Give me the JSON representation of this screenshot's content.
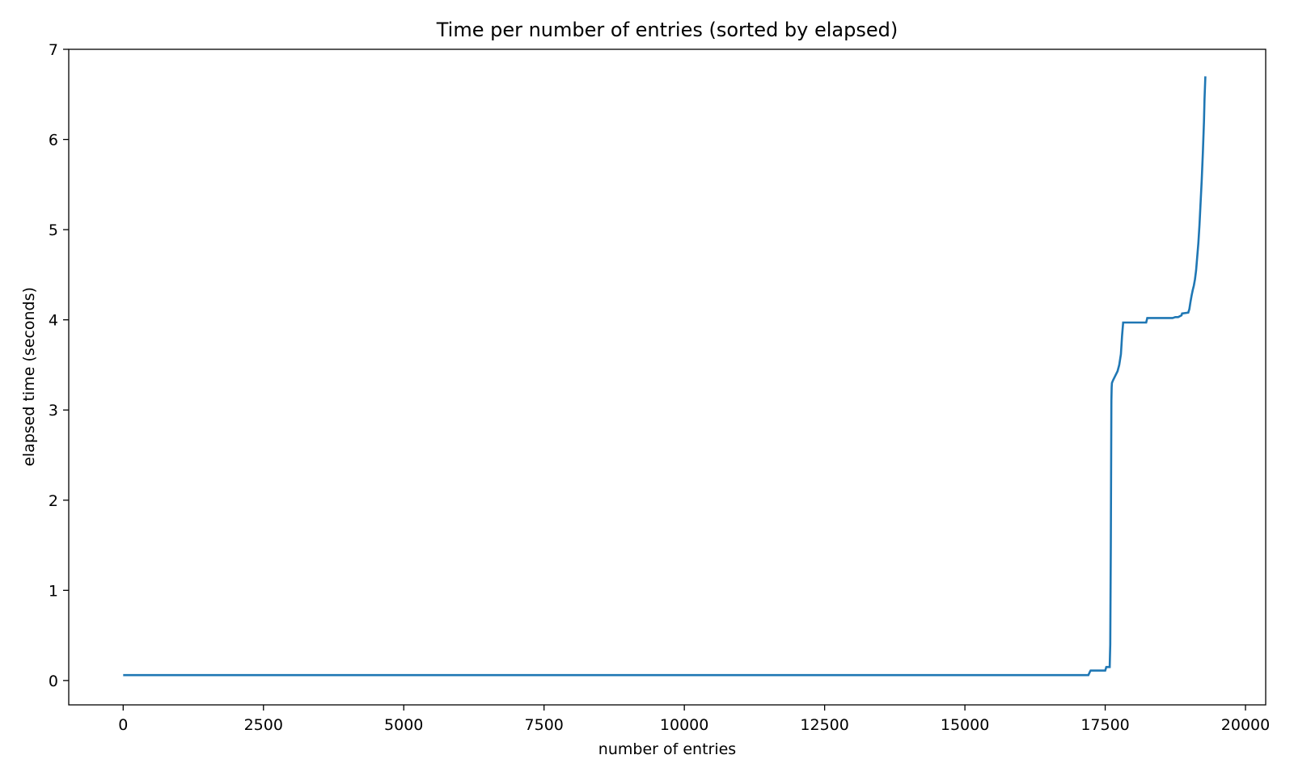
{
  "chart_data": {
    "type": "line",
    "title": "Time per number of entries (sorted by elapsed)",
    "xlabel": "number of entries",
    "ylabel": "elapsed time (seconds)",
    "xlim": [
      -970,
      20360
    ],
    "ylim": [
      -0.27,
      7.0
    ],
    "xticks": [
      0,
      2500,
      5000,
      7500,
      10000,
      12500,
      15000,
      17500,
      20000
    ],
    "yticks": [
      0,
      1,
      2,
      3,
      4,
      5,
      6,
      7
    ],
    "grid": false,
    "legend": "none",
    "series": [
      {
        "color": "#1f77b4",
        "x": [
          0,
          17200,
          17230,
          17240,
          17500,
          17520,
          17580,
          17590,
          17600,
          17610,
          17615,
          17620,
          17640,
          17680,
          17720,
          17750,
          17780,
          17800,
          17820,
          18230,
          18250,
          18700,
          18750,
          18800,
          18860,
          18870,
          18980,
          19000,
          19020,
          19040,
          19060,
          19080,
          19100,
          19120,
          19140,
          19160,
          19180,
          19200,
          19220,
          19240,
          19260,
          19270,
          19285
        ],
        "y": [
          0.06,
          0.06,
          0.1,
          0.11,
          0.11,
          0.15,
          0.15,
          0.4,
          1.5,
          3.1,
          3.25,
          3.3,
          3.33,
          3.38,
          3.43,
          3.5,
          3.62,
          3.82,
          3.97,
          3.97,
          4.02,
          4.02,
          4.03,
          4.03,
          4.05,
          4.07,
          4.08,
          4.12,
          4.2,
          4.27,
          4.33,
          4.38,
          4.45,
          4.55,
          4.7,
          4.85,
          5.05,
          5.3,
          5.55,
          5.85,
          6.2,
          6.45,
          6.7
        ]
      }
    ]
  }
}
